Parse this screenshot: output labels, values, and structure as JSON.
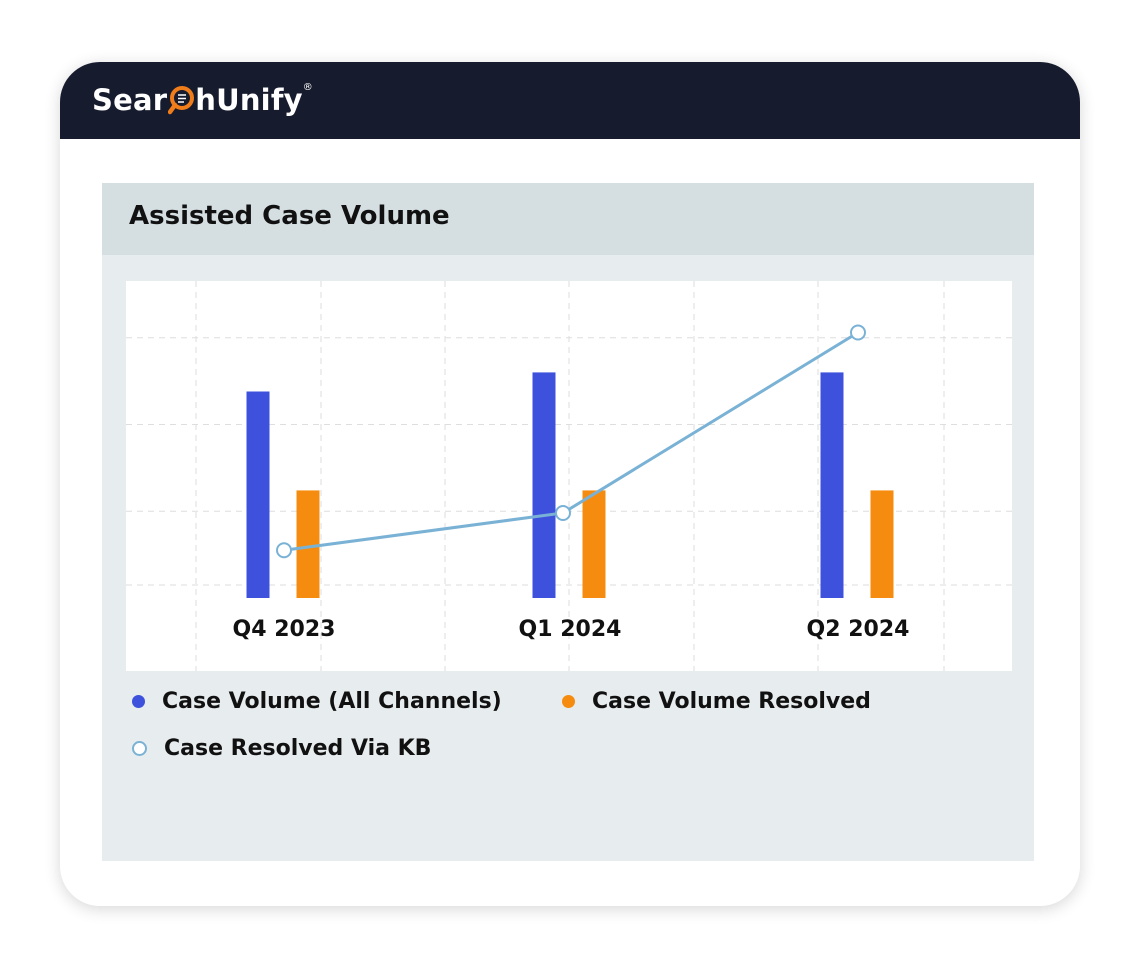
{
  "brand": {
    "logo_text_start": "Sear",
    "logo_text_end": "hUnify",
    "logo_mark": "®",
    "header_color": "#161b2e",
    "accent_color": "#f07d1a"
  },
  "panel": {
    "title": "Assisted Case Volume"
  },
  "chart_data": {
    "type": "bar",
    "categories": [
      "Q4 2023",
      "Q1 2024",
      "Q2 2024"
    ],
    "series": [
      {
        "name": "Case Volume (All Channels)",
        "type": "bar",
        "color": "#3d51dc",
        "values": [
          2.38,
          2.6,
          2.6
        ]
      },
      {
        "name": "Case Volume Resolved",
        "type": "bar",
        "color": "#f68c0f",
        "values": [
          1.24,
          1.24,
          1.24
        ]
      },
      {
        "name": "Case Resolved Via KB",
        "type": "line",
        "color": "#7ab2d6",
        "values": [
          0.55,
          0.98,
          3.06
        ]
      }
    ],
    "ylim": [
      0,
      3.4
    ],
    "grid": true,
    "legend_position": "bottom",
    "title": "",
    "xlabel": "",
    "ylabel": ""
  }
}
